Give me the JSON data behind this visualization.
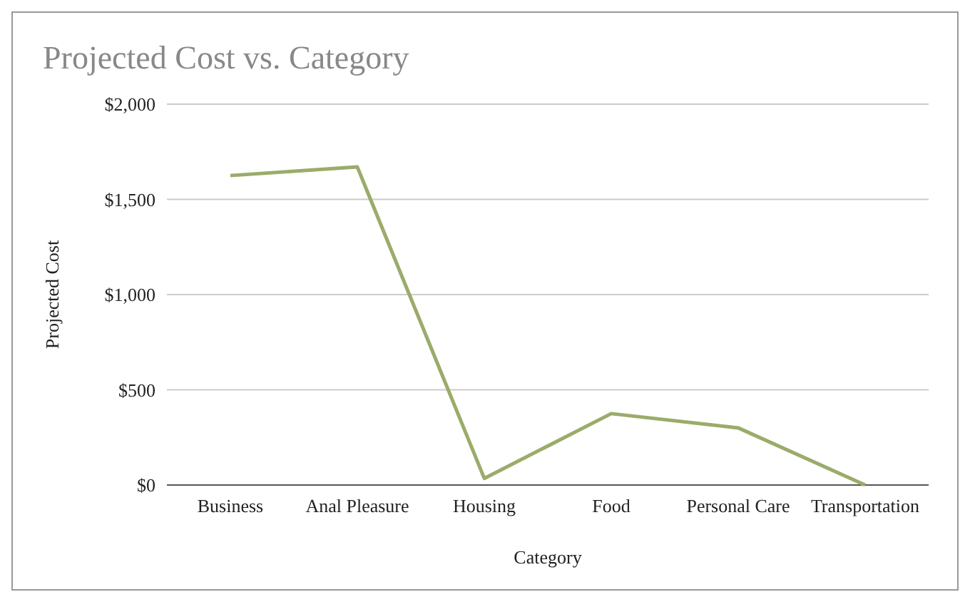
{
  "chart_data": {
    "type": "line",
    "title": "Projected Cost vs. Category",
    "xlabel": "Category",
    "ylabel": "Projected Cost",
    "categories": [
      "Business",
      "Anal Pleasure",
      "Housing",
      "Food",
      "Personal Care",
      "Transportation"
    ],
    "series": [
      {
        "color": "#9bab6a",
        "values": [
          1625,
          1670,
          35,
          375,
          300,
          0
        ]
      }
    ],
    "ylim": [
      0,
      2000
    ],
    "yticks": [
      {
        "value": 0,
        "label": "$0"
      },
      {
        "value": 500,
        "label": "$500"
      },
      {
        "value": 1000,
        "label": "$1,000"
      },
      {
        "value": 1500,
        "label": "$1,500"
      },
      {
        "value": 2000,
        "label": "$2,000"
      }
    ],
    "grid": "y"
  }
}
